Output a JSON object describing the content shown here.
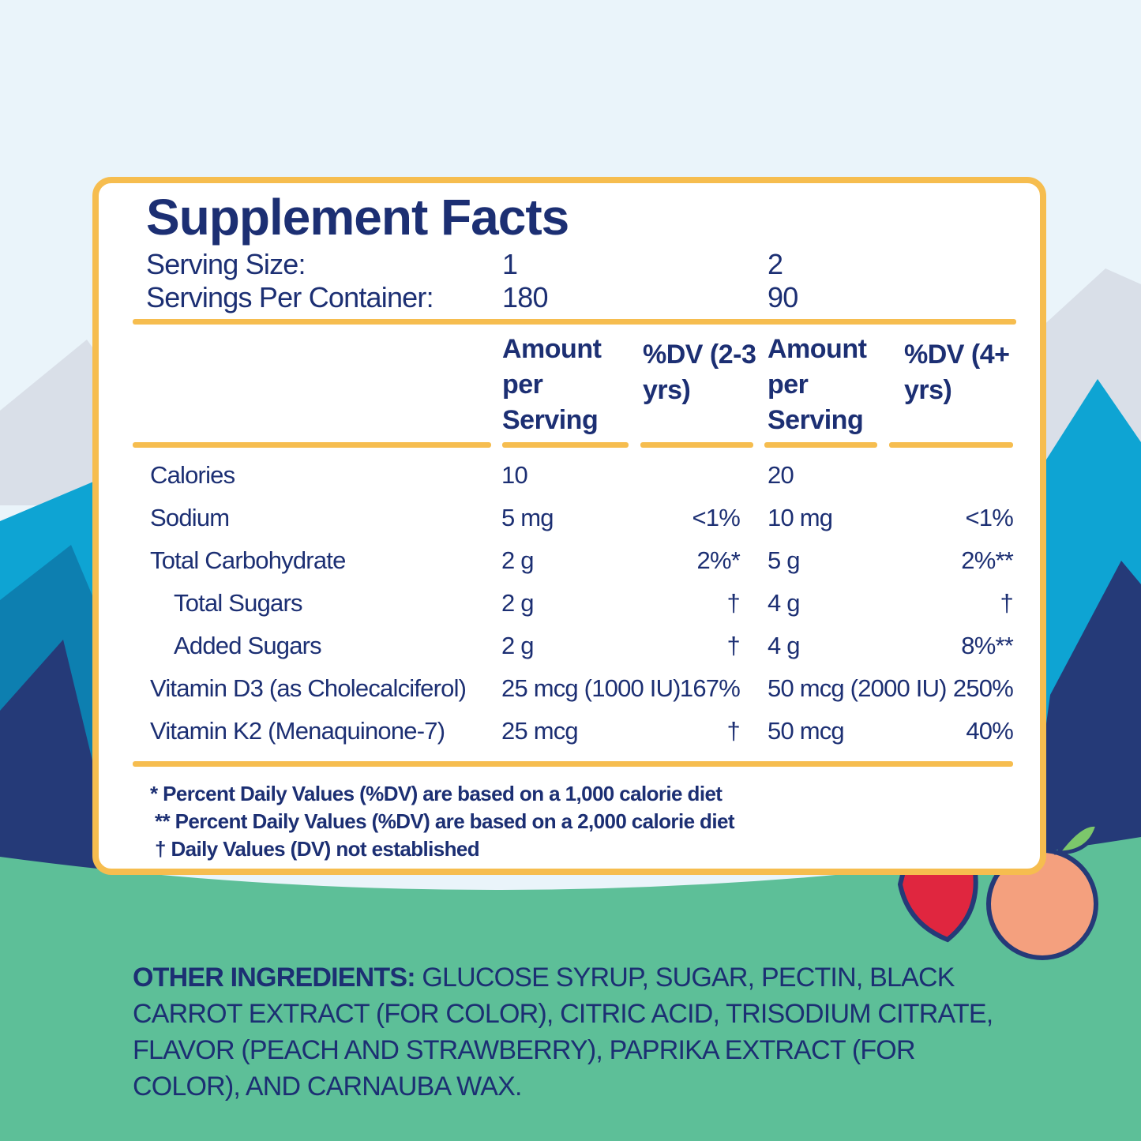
{
  "title": "Supplement Facts",
  "serving": {
    "size_label": "Serving Size:",
    "size": [
      1,
      2
    ],
    "per_container_label": "Servings Per Container:",
    "per_container": [
      180,
      90
    ]
  },
  "table": {
    "header": [
      "Amount per Serving",
      "%DV (2-3 yrs)",
      "Amount per Serving",
      "%DV (4+ yrs)"
    ],
    "rows": [
      {
        "name": "Calories",
        "amount_1": "10",
        "amount_2": "20"
      },
      {
        "name": "Sodium",
        "amount_1": "5 mg",
        "dv_1": "<1%",
        "amount_2": "10 mg",
        "dv_2": "<1%"
      },
      {
        "name": "Total Carbohydrate",
        "amount_1": "2 g",
        "dv_1": "2%*",
        "amount_2": "5 g",
        "dv_2": "2%**"
      },
      {
        "name": "Total Sugars",
        "indent": true,
        "amount_1": "2 g",
        "dv_1": "†",
        "amount_2": "4 g",
        "dv_2": "†"
      },
      {
        "name": "Added Sugars",
        "indent": true,
        "amount_1": "2 g",
        "dv_1": "†",
        "amount_2": "4 g",
        "dv_2": "8%**"
      },
      {
        "name": "Vitamin D3 (as Cholecalciferol)",
        "amount_1": "25 mcg (1000 IU)",
        "dv_1": "167%",
        "amount_2": "50 mcg (2000 IU)",
        "dv_2": "250%"
      },
      {
        "name": "Vitamin K2 (Menaquinone-7)",
        "amount_1": "25 mcg",
        "dv_1": "†",
        "amount_2": "50 mcg",
        "dv_2": "40%"
      }
    ]
  },
  "footnotes": [
    "* Percent Daily Values (%DV) are based on a 1,000 calorie diet",
    "** Percent Daily Values (%DV) are based on a 2,000 calorie diet",
    "† Daily Values (DV) not established"
  ],
  "ingredients": {
    "label": "OTHER INGREDIENTS:",
    "text": "GLUCOSE SYRUP, SUGAR, PECTIN, BLACK CARROT EXTRACT (FOR COLOR), CITRIC ACID, TRISODIUM CITRATE, FLAVOR (PEACH AND STRAWBERRY), PAPRIKA EXTRACT (FOR COLOR), AND CARNAUBA WAX."
  }
}
